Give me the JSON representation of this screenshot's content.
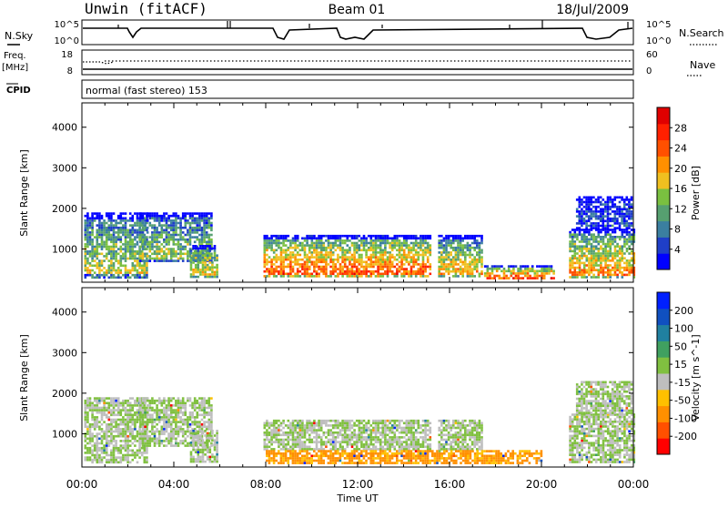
{
  "header": {
    "station": "Unwin (fitACF)",
    "beam": "Beam 01",
    "date": "18/Jul/2009"
  },
  "summary": {
    "nsky_label": "N.Sky",
    "nsky_ticks": [
      "10^5",
      "10^0"
    ],
    "nsearch_label": "N.Search",
    "nsearch_ticks": [
      "10^5",
      "10^0"
    ],
    "freq_label": "Freq.",
    "freq_unit": "[MHz]",
    "freq_ticks": [
      "18",
      "8"
    ],
    "nave_label": "Nave",
    "nave_ticks": [
      "60",
      "0"
    ],
    "cpid_label": "CPID",
    "cpid_text": "normal (fast stereo) 153"
  },
  "chart_data": [
    {
      "type": "heatmap",
      "title": "",
      "xlabel": "Time UT",
      "ylabel": "Slant Range [km]",
      "x_ticks": [
        "00:00",
        "04:00",
        "08:00",
        "12:00",
        "16:00",
        "20:00",
        "00:00"
      ],
      "xlim_hours": [
        0,
        24
      ],
      "y_ticks": [
        "4000",
        "3000",
        "2000",
        "1000"
      ],
      "ylim_km": [
        180,
        4600
      ],
      "colorbar": {
        "label": "Power [dB]",
        "ticks": [
          "28",
          "24",
          "20",
          "16",
          "12",
          "8",
          "4"
        ],
        "colors": [
          "#0000ff",
          "#1f3fc8",
          "#3b7fa0",
          "#56a070",
          "#7ac040",
          "#f0c020",
          "#ff9000",
          "#ff5000",
          "#ff2000",
          "#e00000"
        ]
      },
      "regions": [
        {
          "t0": 0.1,
          "t1": 2.8,
          "r0": 300,
          "r1": 1900,
          "level": 0.45
        },
        {
          "t0": 2.5,
          "t1": 5.6,
          "r0": 700,
          "r1": 1900,
          "level": 0.4
        },
        {
          "t0": 4.7,
          "t1": 5.9,
          "r0": 300,
          "r1": 1100,
          "level": 0.55
        },
        {
          "t0": 7.9,
          "t1": 15.2,
          "r0": 300,
          "r1": 1350,
          "level": 0.7
        },
        {
          "t0": 15.5,
          "t1": 17.4,
          "r0": 300,
          "r1": 1350,
          "level": 0.55
        },
        {
          "t0": 17.5,
          "t1": 20.5,
          "r0": 250,
          "r1": 600,
          "level": 0.75
        },
        {
          "t0": 21.2,
          "t1": 24,
          "r0": 300,
          "r1": 1500,
          "level": 0.6
        },
        {
          "t0": 21.5,
          "t1": 23.9,
          "r0": 1500,
          "r1": 2300,
          "level": 0.15
        }
      ]
    },
    {
      "type": "heatmap",
      "title": "",
      "xlabel": "Time UT",
      "ylabel": "Slant Range [km]",
      "x_ticks": [
        "00:00",
        "04:00",
        "08:00",
        "12:00",
        "16:00",
        "20:00",
        "00:00"
      ],
      "xlim_hours": [
        0,
        24
      ],
      "y_ticks": [
        "4000",
        "3000",
        "2000",
        "1000"
      ],
      "ylim_km": [
        180,
        4600
      ],
      "colorbar": {
        "label": "Velocity [m s^-1]",
        "ticks": [
          "200",
          "100",
          "50",
          "15",
          "-15",
          "-50",
          "-100",
          "-200"
        ],
        "colors": [
          "#ff0000",
          "#ff5000",
          "#ff9000",
          "#ffc000",
          "#bebebe",
          "#80c040",
          "#40a060",
          "#2080a0",
          "#1050c0",
          "#0020ff"
        ]
      },
      "regions": [
        {
          "t0": 0.1,
          "t1": 2.8,
          "r0": 300,
          "r1": 1900,
          "level": 0.5
        },
        {
          "t0": 2.5,
          "t1": 5.6,
          "r0": 700,
          "r1": 1900,
          "level": 0.5
        },
        {
          "t0": 4.7,
          "t1": 5.9,
          "r0": 300,
          "r1": 1100,
          "level": 0.5
        },
        {
          "t0": 7.9,
          "t1": 15.2,
          "r0": 600,
          "r1": 1350,
          "level": 0.5
        },
        {
          "t0": 15.5,
          "t1": 17.4,
          "r0": 600,
          "r1": 1350,
          "level": 0.5
        },
        {
          "t0": 8.0,
          "t1": 20.0,
          "r0": 250,
          "r1": 600,
          "level": 0.28
        },
        {
          "t0": 21.2,
          "t1": 24,
          "r0": 300,
          "r1": 1500,
          "level": 0.5
        },
        {
          "t0": 21.5,
          "t1": 23.9,
          "r0": 1500,
          "r1": 2300,
          "level": 0.5
        }
      ]
    }
  ]
}
